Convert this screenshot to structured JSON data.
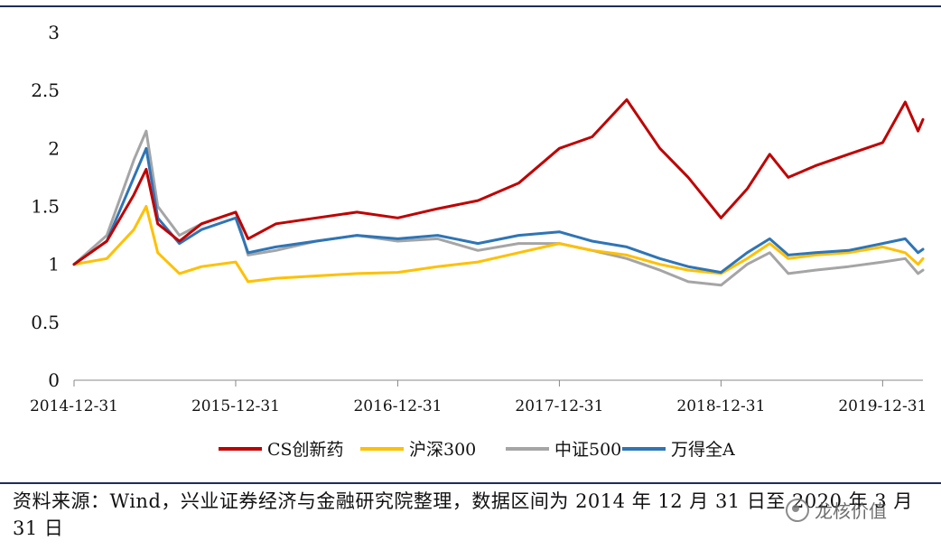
{
  "chart_data": {
    "type": "line",
    "title": "",
    "xlabel": "",
    "ylabel": "",
    "ylim": [
      0,
      3
    ],
    "yticks": [
      "0",
      "0.5",
      "1",
      "1.5",
      "2",
      "2.5",
      "3"
    ],
    "xticks": [
      "2014-12-31",
      "2015-12-31",
      "2016-12-31",
      "2017-12-31",
      "2018-12-31",
      "2019-12-31"
    ],
    "grid": false,
    "legend_position": "bottom",
    "x_dates": [
      "2014-12-31",
      "2015-03-15",
      "2015-05-15",
      "2015-06-12",
      "2015-07-08",
      "2015-08-26",
      "2015-10-15",
      "2015-12-31",
      "2016-01-28",
      "2016-03-31",
      "2016-06-30",
      "2016-09-30",
      "2016-12-31",
      "2017-03-31",
      "2017-06-30",
      "2017-09-30",
      "2017-12-31",
      "2018-03-15",
      "2018-06-01",
      "2018-08-15",
      "2018-10-18",
      "2018-12-31",
      "2019-02-28",
      "2019-04-20",
      "2019-06-01",
      "2019-08-01",
      "2019-10-15",
      "2019-12-31",
      "2020-02-20",
      "2020-03-20",
      "2020-03-31"
    ],
    "series": [
      {
        "name": "CS创新药",
        "color": "#c00000",
        "values": [
          1.0,
          1.2,
          1.6,
          1.82,
          1.35,
          1.2,
          1.35,
          1.45,
          1.22,
          1.35,
          1.4,
          1.45,
          1.4,
          1.48,
          1.55,
          1.7,
          2.0,
          2.1,
          2.42,
          2.0,
          1.75,
          1.4,
          1.65,
          1.95,
          1.75,
          1.85,
          1.95,
          2.05,
          2.4,
          2.15,
          2.25
        ]
      },
      {
        "name": "沪深300",
        "color": "#ffc000",
        "values": [
          1.0,
          1.05,
          1.3,
          1.5,
          1.1,
          0.92,
          0.98,
          1.02,
          0.85,
          0.88,
          0.9,
          0.92,
          0.93,
          0.98,
          1.02,
          1.1,
          1.18,
          1.12,
          1.08,
          1.0,
          0.95,
          0.92,
          1.05,
          1.18,
          1.05,
          1.08,
          1.1,
          1.15,
          1.1,
          1.0,
          1.05
        ]
      },
      {
        "name": "中证500",
        "color": "#a5a5a5",
        "values": [
          1.0,
          1.25,
          1.9,
          2.15,
          1.5,
          1.25,
          1.35,
          1.45,
          1.08,
          1.12,
          1.2,
          1.25,
          1.2,
          1.22,
          1.12,
          1.18,
          1.18,
          1.12,
          1.05,
          0.95,
          0.85,
          0.82,
          1.0,
          1.1,
          0.92,
          0.95,
          0.98,
          1.02,
          1.05,
          0.92,
          0.95
        ]
      },
      {
        "name": "万得全A",
        "color": "#2e75b6",
        "values": [
          1.0,
          1.2,
          1.75,
          2.0,
          1.4,
          1.18,
          1.3,
          1.4,
          1.1,
          1.15,
          1.2,
          1.25,
          1.22,
          1.25,
          1.18,
          1.25,
          1.28,
          1.2,
          1.15,
          1.05,
          0.98,
          0.93,
          1.1,
          1.22,
          1.08,
          1.1,
          1.12,
          1.18,
          1.22,
          1.1,
          1.13
        ]
      }
    ]
  },
  "source_note": "资料来源：Wind，兴业证券经济与金融研究院整理，数据区间为 2014 年 12 月 31 日至 2020 年 3 月 31 日",
  "watermark": {
    "text": "龙核价值",
    "icon": "wechat-icon"
  }
}
